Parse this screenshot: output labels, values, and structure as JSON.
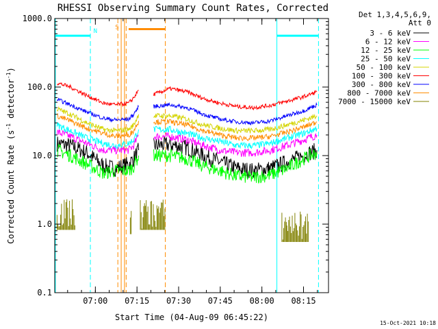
{
  "chart_data": {
    "type": "line",
    "title": "RHESSI Observing Summary Count Rates, Corrected",
    "xlabel": "Start Time (04-Aug-09 06:45:22)",
    "ylabel_main": "Corrected Count Rate (s",
    "ylabel_sup1": "-1",
    "ylabel_mid": " detector",
    "ylabel_sup2": "-1",
    "ylabel_end": ")",
    "y_scale": "log",
    "ylim": [
      0.1,
      1000.0
    ],
    "xlim": [
      6.75611,
      8.4
    ],
    "grid": false,
    "legend_position": "top-right",
    "y_ticks": [
      {
        "v": 1000,
        "label": "1000.0"
      },
      {
        "v": 100,
        "label": "100.0"
      },
      {
        "v": 10,
        "label": "10.0"
      },
      {
        "v": 1,
        "label": "1.0"
      },
      {
        "v": 0.1,
        "label": "0.1"
      }
    ],
    "x_ticks": [
      {
        "v": 7.0,
        "label": "07:00"
      },
      {
        "v": 7.25,
        "label": "07:15"
      },
      {
        "v": 7.5,
        "label": "07:30"
      },
      {
        "v": 7.75,
        "label": "07:45"
      },
      {
        "v": 8.0,
        "label": "08:00"
      },
      {
        "v": 8.25,
        "label": "08:15"
      }
    ],
    "legend_header": [
      "Det 1,3,4,5,6,9,",
      "Att 0"
    ],
    "series": [
      {
        "name": "3 - 6 keV",
        "color": "#000000",
        "noise": 0.12,
        "x": [
          6.77,
          6.85,
          6.95,
          7.05,
          7.12,
          7.2,
          7.23,
          7.26,
          7.27,
          7.35,
          7.45,
          7.55,
          7.65,
          7.75,
          7.85,
          7.95,
          8.05,
          8.15,
          8.25,
          8.33
        ],
        "values": [
          15,
          14,
          11,
          7,
          6.5,
          7.5,
          9,
          12,
          null,
          14,
          14.5,
          13,
          10,
          8,
          6.5,
          6,
          6.5,
          8,
          10,
          12
        ]
      },
      {
        "name": "6 - 12 keV",
        "color": "#ff00ff",
        "noise": 0.06,
        "x": [
          6.77,
          6.85,
          6.95,
          7.05,
          7.12,
          7.2,
          7.23,
          7.26,
          7.27,
          7.35,
          7.45,
          7.55,
          7.65,
          7.75,
          7.85,
          7.95,
          8.05,
          8.15,
          8.25,
          8.33
        ],
        "values": [
          22,
          19,
          15,
          12,
          12,
          12,
          14,
          20,
          null,
          19,
          19,
          17,
          14,
          12,
          11,
          11,
          12,
          14,
          17,
          20
        ]
      },
      {
        "name": "12 - 25 keV",
        "color": "#00ff00",
        "noise": 0.1,
        "x": [
          6.77,
          6.85,
          6.95,
          7.05,
          7.12,
          7.2,
          7.23,
          7.26,
          7.27,
          7.35,
          7.45,
          7.55,
          7.65,
          7.75,
          7.85,
          7.95,
          8.05,
          8.15,
          8.25,
          8.33
        ],
        "values": [
          12,
          10,
          7.5,
          5.5,
          6,
          6,
          7,
          10,
          null,
          10,
          10,
          9,
          7,
          6,
          5,
          4.8,
          5.2,
          6.5,
          9,
          11
        ]
      },
      {
        "name": "25 - 50 keV",
        "color": "#00ffff",
        "noise": 0.05,
        "x": [
          6.77,
          6.85,
          6.95,
          7.05,
          7.12,
          7.2,
          7.23,
          7.26,
          7.27,
          7.35,
          7.45,
          7.55,
          7.65,
          7.75,
          7.85,
          7.95,
          8.05,
          8.15,
          8.25,
          8.33
        ],
        "values": [
          28,
          23,
          18,
          15,
          14,
          15,
          17,
          24,
          null,
          24,
          24,
          21,
          18,
          16,
          14,
          14,
          15,
          18,
          21,
          25
        ]
      },
      {
        "name": "50 - 100 keV",
        "color": "#d4d400",
        "noise": 0.04,
        "x": [
          6.77,
          6.85,
          6.95,
          7.05,
          7.12,
          7.2,
          7.23,
          7.26,
          7.27,
          7.35,
          7.45,
          7.55,
          7.65,
          7.75,
          7.85,
          7.95,
          8.05,
          8.15,
          8.25,
          8.33
        ],
        "values": [
          48,
          40,
          30,
          24,
          23,
          24,
          28,
          40,
          null,
          38,
          38,
          34,
          28,
          25,
          23,
          23,
          24,
          28,
          33,
          38
        ]
      },
      {
        "name": "100 - 300 keV",
        "color": "#ff0000",
        "noise": 0.03,
        "x": [
          6.77,
          6.85,
          6.95,
          7.05,
          7.12,
          7.2,
          7.23,
          7.26,
          7.27,
          7.35,
          7.45,
          7.55,
          7.65,
          7.75,
          7.85,
          7.95,
          8.05,
          8.15,
          8.25,
          8.33
        ],
        "values": [
          115,
          100,
          75,
          58,
          55,
          58,
          70,
          90,
          null,
          78,
          95,
          85,
          68,
          58,
          52,
          50,
          54,
          62,
          72,
          85
        ]
      },
      {
        "name": "300 - 800 keV",
        "color": "#0000ff",
        "noise": 0.03,
        "x": [
          6.77,
          6.85,
          6.95,
          7.05,
          7.12,
          7.2,
          7.23,
          7.26,
          7.27,
          7.35,
          7.45,
          7.55,
          7.65,
          7.75,
          7.85,
          7.95,
          8.05,
          8.15,
          8.25,
          8.33
        ],
        "values": [
          66,
          55,
          43,
          35,
          33,
          34,
          40,
          52,
          null,
          52,
          55,
          50,
          40,
          34,
          31,
          30,
          32,
          38,
          45,
          55
        ]
      },
      {
        "name": "800 - 7000 keV",
        "color": "#ff8c00",
        "noise": 0.04,
        "x": [
          6.77,
          6.85,
          6.95,
          7.05,
          7.12,
          7.2,
          7.23,
          7.26,
          7.27,
          7.35,
          7.45,
          7.55,
          7.65,
          7.75,
          7.85,
          7.95,
          8.05,
          8.15,
          8.25,
          8.33
        ],
        "values": [
          38,
          32,
          25,
          21,
          19,
          20,
          23,
          32,
          null,
          31,
          31,
          28,
          23,
          20,
          18,
          18,
          19,
          22,
          26,
          31
        ]
      },
      {
        "name": "7000 - 15000 keV",
        "color": "#808000",
        "noise": 0,
        "x": [
          6.77,
          6.88,
          6.89,
          7.21,
          7.22,
          7.23,
          7.27,
          7.29,
          7.3,
          7.42,
          7.43,
          8.12,
          8.15,
          8.28
        ],
        "values": [
          1.5,
          1.5,
          null,
          1.3,
          1.3,
          null,
          1.5,
          1.5,
          1.5,
          1.5,
          null,
          1.0,
          1.0,
          1.0
        ]
      }
    ],
    "vlines": [
      {
        "x": 6.76,
        "color": "#00ffff",
        "style": "solid"
      },
      {
        "x": 6.97,
        "color": "#00ffff",
        "style": "dashed"
      },
      {
        "x": 8.09,
        "color": "#00ffff",
        "style": "solid"
      },
      {
        "x": 8.34,
        "color": "#00ffff",
        "style": "dashed"
      },
      {
        "x": 7.135,
        "color": "#ff8c00",
        "style": "dashed"
      },
      {
        "x": 7.155,
        "color": "#ff8c00",
        "style": "solid"
      },
      {
        "x": 7.175,
        "color": "#ff8c00",
        "style": "solid"
      },
      {
        "x": 7.185,
        "color": "#ff8c00",
        "style": "dashed"
      },
      {
        "x": 7.42,
        "color": "#ff8c00",
        "style": "dashed"
      }
    ],
    "hbars": [
      {
        "x0": 6.76,
        "x1": 6.97,
        "y": 560,
        "color": "#00ffff"
      },
      {
        "x0": 8.09,
        "x1": 8.34,
        "y": 560,
        "color": "#00ffff"
      },
      {
        "x0": 7.2,
        "x1": 7.42,
        "y": 700,
        "color": "#ff8c00"
      }
    ],
    "annotations": [
      {
        "text": "N",
        "x": 7.0,
        "y": 620,
        "color": "#00ffff"
      },
      {
        "text": "S",
        "x": 7.13,
        "y": 700,
        "color": "#ff8c00"
      }
    ],
    "timestamp": "15-Oct-2021 10:18"
  }
}
